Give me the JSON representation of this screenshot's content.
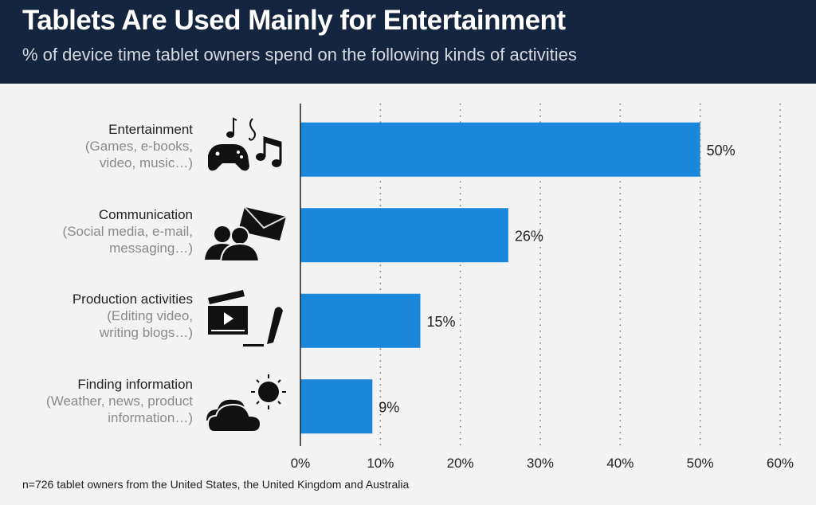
{
  "chart_data": {
    "type": "bar",
    "orientation": "horizontal",
    "title": "Tablets Are Used Mainly for Entertainment",
    "subtitle": "% of device time tablet owners spend on the following kinds of activities",
    "categories": [
      {
        "label": "Entertainment",
        "detail": [
          "(Games, e-books,",
          "video, music…)"
        ],
        "icon": "music-gamepad-icon"
      },
      {
        "label": "Communication",
        "detail": [
          "(Social media, e-mail,",
          "messaging…)"
        ],
        "icon": "people-envelope-icon"
      },
      {
        "label": "Production activities",
        "detail": [
          "(Editing video,",
          "writing blogs…)"
        ],
        "icon": "clapperboard-pen-icon"
      },
      {
        "label": "Finding information",
        "detail": [
          "(Weather, news, product",
          "information…)"
        ],
        "icon": "cloud-sun-icon"
      }
    ],
    "values": [
      50,
      26,
      15,
      9
    ],
    "value_labels": [
      "50%",
      "26%",
      "15%",
      "9%"
    ],
    "xlim": [
      0,
      60
    ],
    "xticks": [
      "0%",
      "10%",
      "20%",
      "30%",
      "40%",
      "50%",
      "60%"
    ],
    "grid": "vertical dotted",
    "bar_color": "#1a87db",
    "footnote": "n=726 tablet owners from the United States, the United Kingdom and Australia"
  }
}
